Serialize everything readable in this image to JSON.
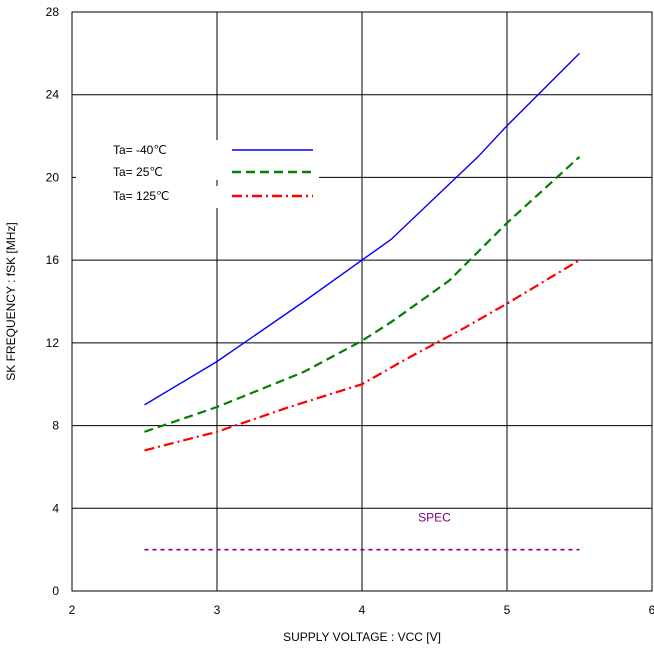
{
  "chart_data": {
    "type": "line",
    "xlabel": "SUPPLY VOLTAGE : VCC [V]",
    "ylabel": "SK FREQUENCY : fSK [MHz]",
    "xlim": [
      2,
      6
    ],
    "ylim": [
      0,
      28
    ],
    "x_ticks": [
      "2",
      "3",
      "4",
      "5",
      "6"
    ],
    "y_ticks": [
      "0",
      "4",
      "8",
      "12",
      "16",
      "20",
      "24",
      "28"
    ],
    "grid": true,
    "legend_placement": "top-left",
    "series": [
      {
        "name": "Ta= -40℃",
        "color": "#0000ff",
        "style": "solid",
        "x": [
          2.5,
          3.0,
          3.6,
          4.0,
          4.2,
          4.8,
          5.0,
          5.5
        ],
        "y": [
          9.0,
          11.1,
          14.0,
          16.0,
          17.0,
          21.0,
          22.5,
          26.0
        ]
      },
      {
        "name": "Ta=  25℃",
        "color": "#008000",
        "style": "dash",
        "x": [
          2.5,
          3.0,
          3.6,
          4.0,
          4.2,
          4.6,
          5.0,
          5.5
        ],
        "y": [
          7.7,
          8.9,
          10.6,
          12.1,
          13.0,
          15.0,
          17.8,
          21.0
        ]
      },
      {
        "name": "Ta= 125℃",
        "color": "#ff0000",
        "style": "dashdot",
        "x": [
          2.5,
          3.0,
          3.5,
          4.0,
          4.3,
          4.7,
          5.0,
          5.5
        ],
        "y": [
          6.8,
          7.7,
          8.9,
          10.0,
          11.2,
          12.7,
          13.9,
          16.0
        ]
      }
    ],
    "annotations": [
      {
        "text": "SPEC",
        "color": "#800080",
        "x": 4.5,
        "y": 3.35
      }
    ],
    "spec_line": {
      "color": "#800080",
      "x": [
        2.5,
        5.5
      ],
      "y": [
        2.0,
        2.0
      ]
    }
  }
}
